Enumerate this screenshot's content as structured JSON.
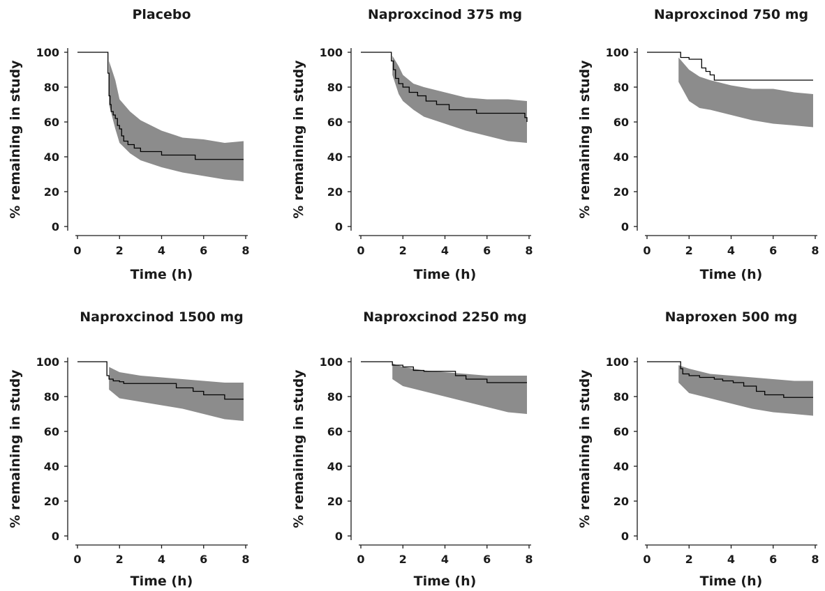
{
  "chart_data": [
    {
      "type": "line",
      "title": "Placebo",
      "xlabel": "Time (h)",
      "ylabel": "% remaining in study",
      "xlim": [
        0,
        8
      ],
      "ylim": [
        0,
        100
      ],
      "xticks": [
        "0",
        "2",
        "4",
        "6",
        "8"
      ],
      "yticks": [
        "0",
        "20",
        "40",
        "60",
        "80",
        "100"
      ],
      "grid": false,
      "observed_step": {
        "x": [
          0,
          1.45,
          1.5,
          1.55,
          1.6,
          1.7,
          1.8,
          1.9,
          2.0,
          2.1,
          2.2,
          2.4,
          2.7,
          3.0,
          4.0,
          5.6,
          7.9
        ],
        "y": [
          100,
          88,
          75,
          70,
          66,
          64,
          62,
          58,
          56,
          52,
          49,
          47,
          45,
          43,
          41,
          38.5,
          38.5
        ]
      },
      "prediction_band": {
        "x": [
          1.5,
          1.8,
          2.0,
          2.5,
          3.0,
          4.0,
          5.0,
          6.0,
          7.0,
          7.9
        ],
        "lower": [
          70,
          56,
          48,
          42,
          38,
          34,
          31,
          29,
          27,
          26
        ],
        "upper": [
          95,
          84,
          73,
          66,
          61,
          55,
          51,
          50,
          48,
          49
        ]
      },
      "band_color": "#8c8c8c",
      "line_color": "#000000"
    },
    {
      "type": "line",
      "title": "Naproxcinod 375 mg",
      "xlabel": "Time (h)",
      "ylabel": "% remaining in study",
      "xlim": [
        0,
        8
      ],
      "ylim": [
        0,
        100
      ],
      "xticks": [
        "0",
        "2",
        "4",
        "6",
        "8"
      ],
      "yticks": [
        "0",
        "20",
        "40",
        "60",
        "80",
        "100"
      ],
      "grid": false,
      "observed_step": {
        "x": [
          0,
          1.45,
          1.55,
          1.65,
          1.8,
          2.0,
          2.3,
          2.7,
          3.1,
          3.6,
          4.2,
          5.5,
          7.8,
          7.9
        ],
        "y": [
          100,
          95,
          90,
          85,
          82,
          80,
          77,
          75,
          72,
          70,
          67,
          65,
          62.5,
          60
        ]
      },
      "prediction_band": {
        "x": [
          1.5,
          1.8,
          2.0,
          2.5,
          3.0,
          4.0,
          5.0,
          6.0,
          7.0,
          7.9
        ],
        "lower": [
          87,
          76,
          72,
          67,
          63,
          59,
          55,
          52,
          49,
          48
        ],
        "upper": [
          98,
          92,
          87,
          82,
          80,
          77,
          74,
          73,
          73,
          72
        ]
      },
      "band_color": "#8c8c8c",
      "line_color": "#000000"
    },
    {
      "type": "line",
      "title": "Naproxcinod 750 mg",
      "xlabel": "Time (h)",
      "ylabel": "% remaining in study",
      "xlim": [
        0,
        8
      ],
      "ylim": [
        0,
        100
      ],
      "xticks": [
        "0",
        "2",
        "4",
        "6",
        "8"
      ],
      "yticks": [
        "0",
        "20",
        "40",
        "60",
        "80",
        "100"
      ],
      "grid": false,
      "observed_step": {
        "x": [
          0,
          1.6,
          1.7,
          2.0,
          2.6,
          2.8,
          3.0,
          3.2,
          7.9
        ],
        "y": [
          100,
          97,
          97,
          96,
          91,
          89,
          87,
          84,
          84
        ]
      },
      "prediction_band": {
        "x": [
          1.5,
          2.0,
          2.5,
          3.0,
          4.0,
          5.0,
          6.0,
          7.0,
          7.9
        ],
        "lower": [
          83,
          72,
          68,
          67,
          64,
          61,
          59,
          58,
          57
        ],
        "upper": [
          97,
          90,
          86,
          84,
          81,
          79,
          79,
          77,
          76
        ]
      },
      "band_color": "#8c8c8c",
      "line_color": "#000000"
    },
    {
      "type": "line",
      "title": "Naproxcinod 1500 mg",
      "xlabel": "Time (h)",
      "ylabel": "% remaining in study",
      "xlim": [
        0,
        8
      ],
      "ylim": [
        0,
        100
      ],
      "xticks": [
        "0",
        "2",
        "4",
        "6",
        "8"
      ],
      "yticks": [
        "0",
        "20",
        "40",
        "60",
        "80",
        "100"
      ],
      "grid": false,
      "observed_step": {
        "x": [
          0,
          1.4,
          1.5,
          1.7,
          2.0,
          2.2,
          3.5,
          4.7,
          5.5,
          6.0,
          7.0,
          7.9
        ],
        "y": [
          100,
          92,
          90,
          89,
          88.5,
          87.5,
          87.5,
          85,
          83,
          81,
          78.5,
          78.5
        ]
      },
      "prediction_band": {
        "x": [
          1.5,
          2.0,
          3.0,
          4.0,
          5.0,
          6.0,
          7.0,
          7.9
        ],
        "lower": [
          84,
          79,
          77,
          75,
          73,
          70,
          67,
          66
        ],
        "upper": [
          97,
          94,
          92,
          91,
          90,
          89,
          88,
          88
        ]
      },
      "band_color": "#8c8c8c",
      "line_color": "#000000"
    },
    {
      "type": "line",
      "title": "Naproxcinod 2250 mg",
      "xlabel": "Time (h)",
      "ylabel": "% remaining in study",
      "xlim": [
        0,
        8
      ],
      "ylim": [
        0,
        100
      ],
      "xticks": [
        "0",
        "2",
        "4",
        "6",
        "8"
      ],
      "yticks": [
        "0",
        "20",
        "40",
        "60",
        "80",
        "100"
      ],
      "grid": false,
      "observed_step": {
        "x": [
          0,
          1.5,
          2.0,
          2.5,
          3.0,
          4.0,
          4.5,
          5.0,
          6.0,
          7.9
        ],
        "y": [
          100,
          98,
          97,
          95,
          94.5,
          94.5,
          92,
          90,
          88,
          88
        ]
      },
      "prediction_band": {
        "x": [
          1.5,
          2.0,
          3.0,
          4.0,
          5.0,
          6.0,
          7.0,
          7.9
        ],
        "lower": [
          90,
          86,
          83,
          80,
          77,
          74,
          71,
          70
        ],
        "upper": [
          99,
          97,
          95,
          94,
          93,
          92,
          92,
          92
        ]
      },
      "band_color": "#8c8c8c",
      "line_color": "#000000"
    },
    {
      "type": "line",
      "title": "Naproxen 500 mg",
      "xlabel": "Time (h)",
      "ylabel": "% remaining in study",
      "xlim": [
        0,
        8
      ],
      "ylim": [
        0,
        100
      ],
      "xticks": [
        "0",
        "2",
        "4",
        "6",
        "8"
      ],
      "yticks": [
        "0",
        "20",
        "40",
        "60",
        "80",
        "100"
      ],
      "grid": false,
      "observed_step": {
        "x": [
          0,
          1.6,
          1.7,
          2.0,
          2.5,
          3.2,
          3.6,
          4.1,
          4.6,
          5.2,
          5.6,
          6.5,
          7.9
        ],
        "y": [
          100,
          96,
          93,
          92,
          91,
          90,
          89,
          88,
          86,
          83,
          81,
          79.5,
          79.5
        ]
      },
      "prediction_band": {
        "x": [
          1.5,
          2.0,
          3.0,
          4.0,
          5.0,
          6.0,
          7.0,
          7.9
        ],
        "lower": [
          88,
          82,
          79,
          76,
          73,
          71,
          70,
          69
        ],
        "upper": [
          98,
          96,
          93,
          92,
          91,
          90,
          89,
          89
        ]
      },
      "band_color": "#8c8c8c",
      "line_color": "#000000"
    }
  ]
}
